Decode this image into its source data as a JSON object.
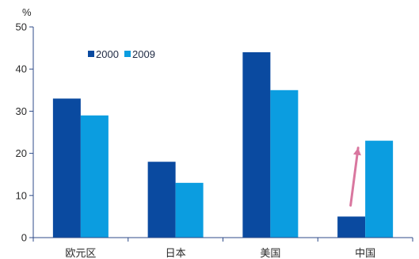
{
  "chart_data": {
    "type": "bar",
    "categories": [
      "欧元区",
      "日本",
      "美国",
      "中国"
    ],
    "series": [
      {
        "name": "2000",
        "values": [
          33,
          18,
          44,
          5
        ],
        "color": "#0a4aa0"
      },
      {
        "name": "2009",
        "values": [
          29,
          13,
          35,
          23
        ],
        "color": "#0b9de0"
      }
    ],
    "ylabel": "%",
    "ylim": [
      0,
      50
    ],
    "yticks": [
      0,
      10,
      20,
      30,
      40,
      50
    ],
    "grid": false,
    "legend_position": "top-left",
    "annotation": {
      "type": "arrow",
      "category": "中国",
      "color": "#d9779f"
    },
    "axis_color": "#2f4b88"
  }
}
